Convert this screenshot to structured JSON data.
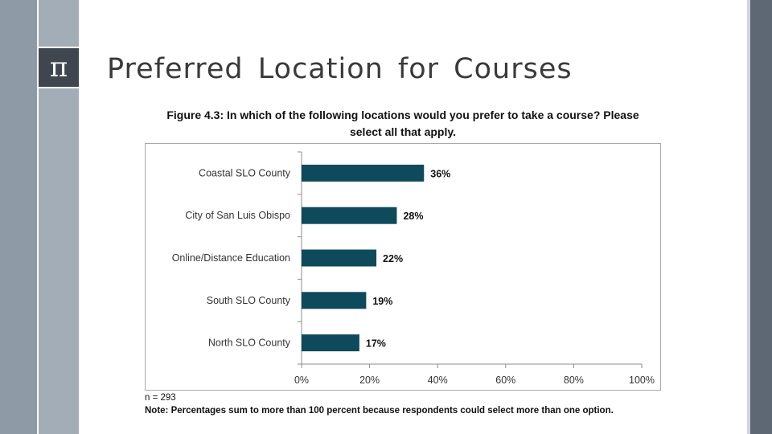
{
  "slide": {
    "title": "Preferred Location for Courses",
    "logo_symbol": "π",
    "colors": {
      "band_dark": "#5e6874",
      "band_mid": "#8e9aa6",
      "logo_box": "#3f4650",
      "bar": "#0e4a5b"
    }
  },
  "figure": {
    "caption_line1": "Figure 4.3: In which of the following locations would you prefer to take a course? Please",
    "caption_line2": "select all that apply.",
    "sample_size": "n = 293",
    "note": "Note: Percentages sum to more than 100 percent because respondents could select more than one option."
  },
  "chart_data": {
    "type": "bar",
    "orientation": "horizontal",
    "categories": [
      "Coastal SLO County",
      "City of San Luis Obispo",
      "Online/Distance Education",
      "South SLO County",
      "North SLO County"
    ],
    "values": [
      36,
      28,
      22,
      19,
      17
    ],
    "value_labels": [
      "36%",
      "28%",
      "22%",
      "19%",
      "17%"
    ],
    "xlim": [
      0,
      100
    ],
    "x_ticks": [
      "0%",
      "20%",
      "40%",
      "60%",
      "80%",
      "100%"
    ],
    "grid": false,
    "legend": "none",
    "bar_color": "#0e4a5b"
  }
}
